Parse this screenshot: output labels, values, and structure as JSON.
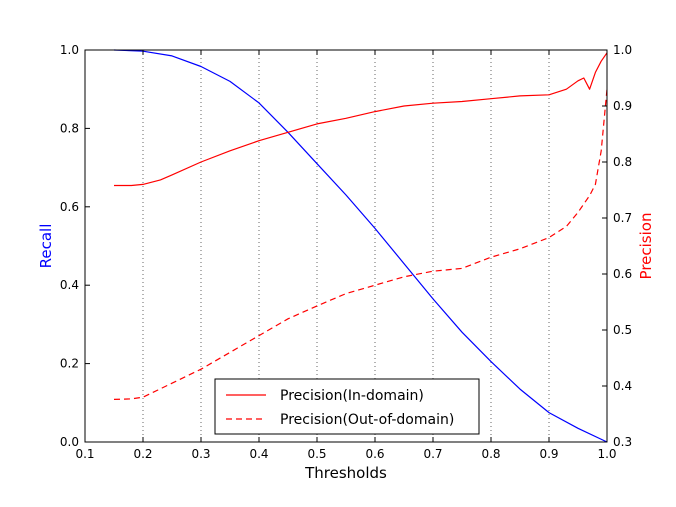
{
  "chart_data": {
    "type": "line",
    "xlabel": "Thresholds",
    "ylabel_left": "Recall",
    "ylabel_right": "Precision",
    "xlim": [
      0.1,
      1.0
    ],
    "ylim_left": [
      0.0,
      1.0
    ],
    "ylim_right": [
      0.3,
      1.0
    ],
    "x_ticks": [
      "0.1",
      "0.2",
      "0.3",
      "0.4",
      "0.5",
      "0.6",
      "0.7",
      "0.8",
      "0.9",
      "1.0"
    ],
    "y_left_ticks": [
      "0.0",
      "0.2",
      "0.4",
      "0.6",
      "0.8",
      "1.0"
    ],
    "y_right_ticks": [
      "0.3",
      "0.4",
      "0.5",
      "0.6",
      "0.7",
      "0.8",
      "0.9",
      "1.0"
    ],
    "grid": "vertical-dotted",
    "legend_position": "bottom-center",
    "colors": {
      "recall": "#0000ff",
      "precision": "#ff0000",
      "ylabel_left": "#0000ff",
      "ylabel_right": "#ff0000"
    },
    "series": [
      {
        "key": "recall",
        "axis": "left",
        "style": "solid",
        "x": [
          0.15,
          0.2,
          0.25,
          0.3,
          0.35,
          0.4,
          0.45,
          0.5,
          0.55,
          0.6,
          0.65,
          0.7,
          0.75,
          0.8,
          0.85,
          0.9,
          0.95,
          1.0
        ],
        "values": [
          1.0,
          0.997,
          0.985,
          0.958,
          0.92,
          0.865,
          0.79,
          0.71,
          0.63,
          0.545,
          0.455,
          0.365,
          0.28,
          0.205,
          0.135,
          0.075,
          0.035,
          0.0
        ]
      },
      {
        "key": "precision-in",
        "name": "Precision(In-domain)",
        "axis": "right",
        "style": "solid",
        "x": [
          0.15,
          0.18,
          0.2,
          0.23,
          0.25,
          0.3,
          0.35,
          0.4,
          0.45,
          0.5,
          0.55,
          0.6,
          0.65,
          0.7,
          0.75,
          0.8,
          0.85,
          0.9,
          0.93,
          0.95,
          0.96,
          0.97,
          0.98,
          0.99,
          1.0
        ],
        "values": [
          0.758,
          0.758,
          0.76,
          0.768,
          0.777,
          0.8,
          0.82,
          0.838,
          0.853,
          0.868,
          0.878,
          0.89,
          0.9,
          0.905,
          0.908,
          0.913,
          0.918,
          0.92,
          0.93,
          0.945,
          0.95,
          0.93,
          0.96,
          0.98,
          0.995
        ]
      },
      {
        "key": "precision-out",
        "name": "Precision(Out-of-domain)",
        "axis": "right",
        "style": "dashed",
        "x": [
          0.15,
          0.18,
          0.2,
          0.25,
          0.3,
          0.35,
          0.4,
          0.45,
          0.5,
          0.55,
          0.6,
          0.65,
          0.7,
          0.75,
          0.8,
          0.85,
          0.9,
          0.93,
          0.95,
          0.97,
          0.98,
          0.99,
          1.0
        ],
        "values": [
          0.376,
          0.377,
          0.38,
          0.405,
          0.43,
          0.46,
          0.49,
          0.52,
          0.543,
          0.565,
          0.58,
          0.595,
          0.605,
          0.61,
          0.63,
          0.645,
          0.665,
          0.685,
          0.71,
          0.74,
          0.76,
          0.82,
          0.93
        ]
      }
    ]
  }
}
